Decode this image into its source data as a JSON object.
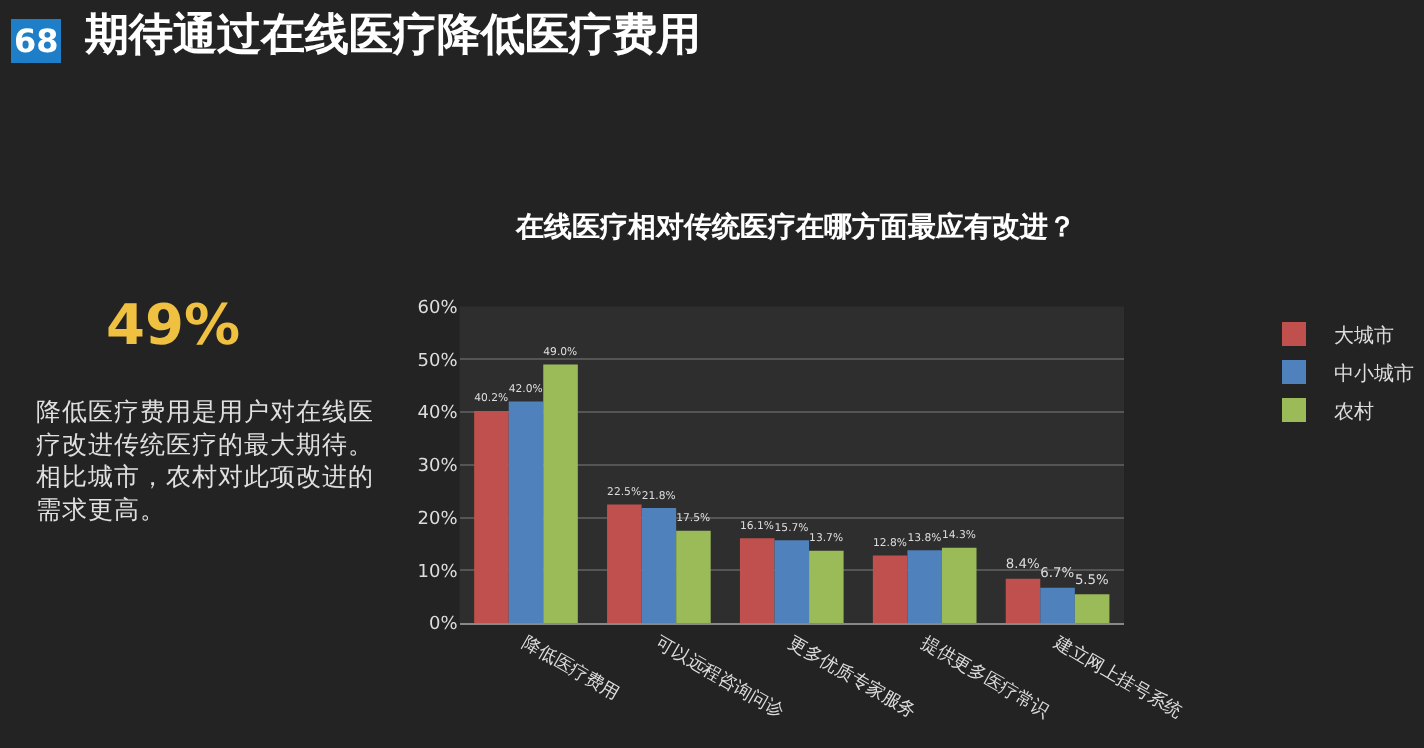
{
  "chart_data": {
    "type": "bar",
    "title": "期待通过在线医疗降低医疗费用",
    "subtitle": "在线医疗相对传统医疗在哪方面最应有改进？",
    "categories": [
      "降低医疗费用",
      "可以远程咨询问诊",
      "更多优质专家服务",
      "提供更多医疗常识",
      "建立网上挂号系统"
    ],
    "series": [
      {
        "name": "大城市",
        "color": "#c0504d",
        "values": [
          40.2,
          22.5,
          16.1,
          12.8,
          8.4
        ],
        "value_labels": [
          "40.2%",
          "22.5%",
          "16.1%",
          "12.8%",
          "8.4%"
        ]
      },
      {
        "name": "中小城市",
        "color": "#4f81bd",
        "values": [
          42.0,
          21.8,
          15.7,
          13.8,
          6.7
        ],
        "value_labels": [
          "42.0%",
          "21.8%",
          "15.7%",
          "13.8%",
          "6.7%"
        ]
      },
      {
        "name": "农村",
        "color": "#9bbb59",
        "values": [
          49.0,
          17.5,
          13.7,
          14.3,
          5.5
        ],
        "value_labels": [
          "49.0%",
          "17.5%",
          "13.7%",
          "14.3%",
          "5.5%"
        ]
      }
    ],
    "ylim": [
      0,
      60
    ],
    "yticks": [
      {
        "value": 0,
        "label": "0%"
      },
      {
        "value": 10,
        "label": "10%"
      },
      {
        "value": 20,
        "label": "20%"
      },
      {
        "value": 30,
        "label": "30%"
      },
      {
        "value": 40,
        "label": "40%"
      },
      {
        "value": 50,
        "label": "50%"
      },
      {
        "value": 60,
        "label": "60%"
      }
    ],
    "grid": "y",
    "legend": "right",
    "annotations": [
      "68",
      "49%",
      "降低医疗费用是用户对在线医疗改进传统医疗的最大期待。相比城市，农村对此项改进的需求更高。"
    ]
  }
}
